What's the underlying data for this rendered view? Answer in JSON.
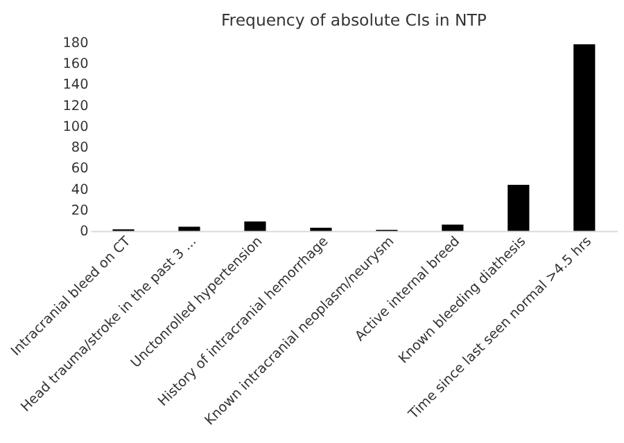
{
  "chart_data": {
    "type": "bar",
    "title": "Frequency of absolute CIs in NTP",
    "categories": [
      "Intracranial bleed on CT",
      "Head trauma/stroke in the past 3 ...",
      "Unctonrolled hypertension",
      "History of intracranial hemorrhage",
      "Known intracranial neoplasm/neurysm",
      "Active internal breed",
      "Known bleeding diathesis",
      "Time since last seen normal >4.5 hrs"
    ],
    "values": [
      1.5,
      4,
      9,
      3,
      1,
      6,
      44,
      178
    ],
    "color": "#000000",
    "ylim": [
      0,
      180
    ],
    "yticks": [
      0,
      20,
      40,
      60,
      80,
      100,
      120,
      140,
      160,
      180
    ],
    "grid": false
  }
}
